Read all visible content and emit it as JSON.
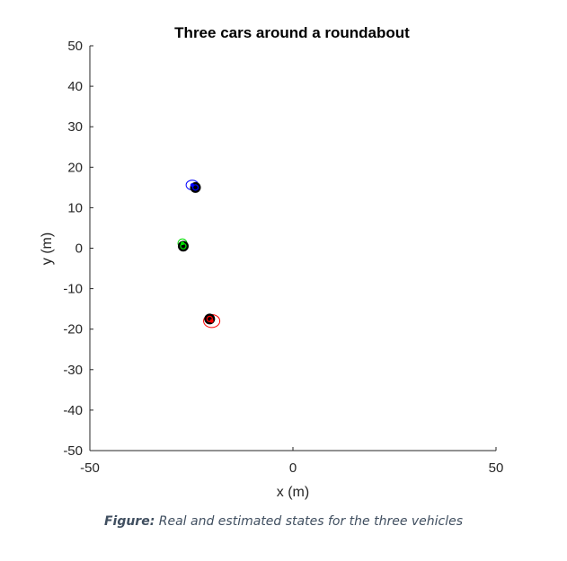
{
  "chart_data": {
    "type": "scatter",
    "title": "Three cars around a roundabout",
    "xlabel": "x (m)",
    "ylabel": "y (m)",
    "xlim": [
      -50,
      50
    ],
    "ylim": [
      -50,
      50
    ],
    "xticks": [
      -50,
      0,
      50
    ],
    "yticks": [
      50,
      40,
      30,
      20,
      10,
      0,
      -10,
      -20,
      -30,
      -40,
      -50
    ],
    "grid": false,
    "series": [
      {
        "color": "#0000ff",
        "real": {
          "x": -24,
          "y": 15
        },
        "estimate": {
          "x": -24.8,
          "y": 15.6
        },
        "ellipse": {
          "rx": 1.5,
          "ry": 1.2
        }
      },
      {
        "color": "#00dd00",
        "real": {
          "x": -27,
          "y": 0.5
        },
        "estimate": {
          "x": -27.2,
          "y": 1.2
        },
        "ellipse": {
          "rx": 1.1,
          "ry": 1.1
        }
      },
      {
        "color": "#ff0000",
        "real": {
          "x": -20.5,
          "y": -17.5
        },
        "estimate": {
          "x": -20.0,
          "y": -18.0
        },
        "ellipse": {
          "rx": 2.0,
          "ry": 1.6
        }
      }
    ]
  },
  "caption": {
    "label": "Figure:",
    "text": " Real and estimated states for the three vehicles"
  }
}
